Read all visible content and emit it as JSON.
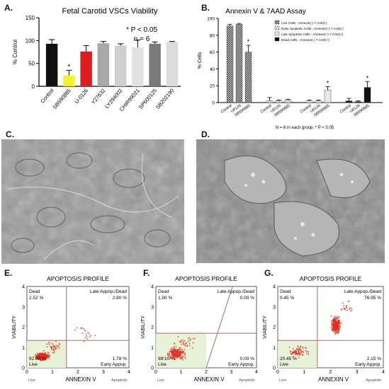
{
  "panels": {
    "A": "A.",
    "B": "B.",
    "C": "C.",
    "D": "D.",
    "E": "E.",
    "F": "F.",
    "G": "G."
  },
  "chart_data": [
    {
      "id": "A",
      "type": "bar",
      "title": "Fetal Carotid VSCs Viability",
      "ylabel": "% Control",
      "ylim": [
        0,
        150
      ],
      "yticks": [
        "0",
        "50",
        "100",
        "150"
      ],
      "categories": [
        "Control",
        "SB590885",
        "U-0126",
        "Y27632",
        "LY294002",
        "CHIR99021",
        "SP600125",
        "SB202190"
      ],
      "values": [
        93,
        24,
        76,
        94,
        89,
        85,
        93,
        97
      ],
      "errors": [
        9,
        11,
        13,
        4,
        4,
        16,
        4,
        1
      ],
      "colors": [
        "#111111",
        "#f2f230",
        "#e01b1b",
        "#a8a8a8",
        "#cfcfcf",
        "#e2e2e2",
        "#7a7a7a",
        "#dcdcdc"
      ],
      "stars": [
        "",
        "*",
        "",
        "",
        "",
        "",
        "",
        ""
      ],
      "annotation": [
        "* P < 0.05",
        "n = 6"
      ]
    },
    {
      "id": "B",
      "type": "bar",
      "title": "Annexin V & 7AAD Assay",
      "ylabel": "% Cells",
      "ylim": [
        0,
        100
      ],
      "yticks": [
        "0",
        "20",
        "40",
        "60",
        "80",
        "100"
      ],
      "groups": [
        {
          "categories": [
            "Control",
            "U0126",
            "SB590885"
          ],
          "values": [
            91,
            93,
            60
          ],
          "errors": [
            2,
            1,
            8
          ],
          "stars": [
            "",
            "",
            "*"
          ]
        },
        {
          "categories": [
            "Control",
            "U0126",
            "SB590885"
          ],
          "values": [
            2,
            2,
            3
          ],
          "errors": [
            4,
            1,
            1
          ],
          "stars": [
            "",
            "",
            ""
          ]
        },
        {
          "categories": [
            "Control",
            "U0126",
            "SB590885"
          ],
          "values": [
            2,
            2,
            15
          ],
          "errors": [
            1,
            1,
            4
          ],
          "stars": [
            "",
            "",
            "*"
          ]
        },
        {
          "categories": [
            "Control",
            "U0126",
            "SB590885"
          ],
          "values": [
            2,
            1,
            18
          ],
          "errors": [
            3,
            1,
            7
          ],
          "stars": [
            "",
            "",
            "*"
          ]
        }
      ],
      "legend": [
        "Live Cells - Annexin(-) 7-AAD(-)",
        "Early Apoptotic Cells - Annexin(+) 7-AAD(-)",
        "Late Apoptotic Cells - Annexin(+) 7-AAD(+)",
        "Dead Cells - Annexin(-) 7-AAD(+)"
      ],
      "legend_position": "top-right",
      "footnote": "N = 6 in each group; * P < 0.05"
    },
    {
      "id": "E",
      "type": "scatter",
      "title": "APOPTOSIS PROFILE",
      "xlabel": "ANNEXIN V",
      "ylabel": "VIABILITY",
      "xlim": [
        0,
        4
      ],
      "ylim": [
        0,
        4
      ],
      "xticks": [
        "0",
        "1",
        "2",
        "3",
        "4"
      ],
      "yticks": [
        "0",
        "1",
        "2",
        "3",
        "4"
      ],
      "quadrants": {
        "dead": "Dead",
        "dead_pct": "2.52 %",
        "late": "Late Appop./Dead",
        "late_pct": "2.80 %",
        "live": "Live",
        "live_pct": "92.90 %",
        "early": "Early Appop.",
        "early_pct": "1.78 %"
      },
      "axis_left": "Live",
      "axis_right": "Apoptotic",
      "gates": {
        "x": 1.55,
        "y": 1.35
      }
    },
    {
      "id": "F",
      "type": "scatter",
      "title": "APOPTOSIS PROFILE",
      "xlabel": "ANNEXIN V",
      "ylabel": "VIABILITY",
      "xlim": [
        0,
        4
      ],
      "ylim": [
        0,
        4
      ],
      "xticks": [
        "0",
        "1",
        "2",
        "3",
        "4"
      ],
      "yticks": [
        "0",
        "1",
        "2",
        "3",
        "4"
      ],
      "quadrants": {
        "dead": "Dead",
        "dead_pct": "1.90 %",
        "late": "Late Appop./Dead",
        "late_pct": "0.00 %",
        "live": "Live",
        "live_pct": "98.10 %",
        "early": "Early Appop.",
        "early_pct": "0.00 %"
      },
      "axis_left": "Live",
      "axis_right": "Apoptotic",
      "gates": {
        "x": 2.0,
        "y": 1.7
      }
    },
    {
      "id": "G",
      "type": "scatter",
      "title": "APOPTOSIS PROFILE",
      "xlabel": "ANNEXIN V",
      "ylabel": "VIABILITY",
      "xlim": [
        0,
        4
      ],
      "ylim": [
        0,
        4
      ],
      "xticks": [
        "0",
        "1",
        "2",
        "3",
        "4"
      ],
      "yticks": [
        "0",
        "1",
        "2",
        "3",
        "4"
      ],
      "quadrants": {
        "dead": "Dead",
        "dead_pct": "0.45 %",
        "late": "Late Appop./Dead",
        "late_pct": "76.95 %",
        "live": "Live",
        "live_pct": "20.45 %",
        "early": "Early Appop.",
        "early_pct": "2.15 %"
      },
      "axis_left": "Live",
      "axis_right": "Apoptotic",
      "gates": {
        "x": 1.5,
        "y": 1.35
      }
    }
  ]
}
